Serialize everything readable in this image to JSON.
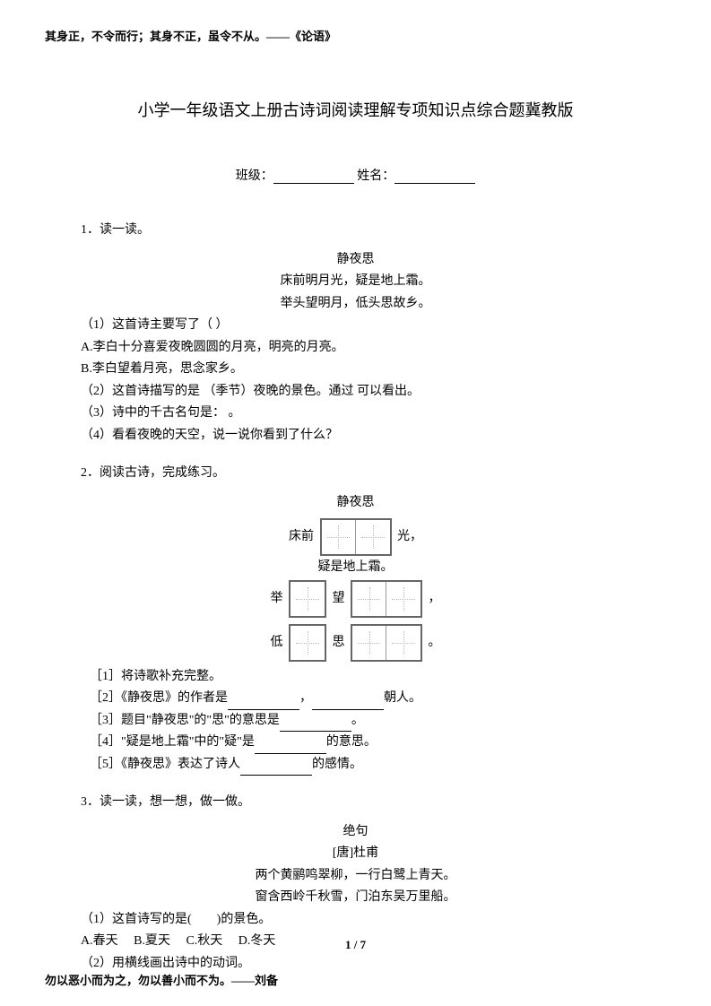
{
  "header_quote": "其身正，不令而行；其身不正，虽令不从。——《论语》",
  "title": "小学一年级语文上册古诗词阅读理解专项知识点综合题冀教版",
  "form": {
    "class_label": "班级：",
    "name_label": "   姓名："
  },
  "q1": {
    "num": "1．读一读。",
    "poem_title": "静夜思",
    "line1": "床前明月光，疑是地上霜。",
    "line2": "举头望明月，低头思故乡。",
    "sub1": "（1）这首诗主要写了（ ）",
    "optA": "A.李白十分喜爱夜晚圆圆的月亮，明亮的月亮。",
    "optB": "B.李白望着月亮，思念家乡。",
    "sub2": "（2）这首诗描写的是   （季节）夜晚的景色。通过   可以看出。",
    "sub3": "（3）诗中的千古名句是：   。",
    "sub4": "（4）看看夜晚的天空，说一说你看到了什么？"
  },
  "q2": {
    "num": "2．阅读古诗，完成练习。",
    "poem_title": "静夜思",
    "row1_pre": "床前",
    "row1_post": "光，",
    "row2": "疑是地上霜。",
    "row3_pre": "举",
    "row3_mid": "望",
    "row3_post": "，",
    "row4_pre": "低",
    "row4_mid": "思",
    "row4_post": "。",
    "sub1": "［1］将诗歌补充完整。",
    "sub2a": "［2］《静夜思》的作者是",
    "sub2b": "，",
    "sub2c": "朝人。",
    "sub3a": "［3］题目\"静夜思\"的\"思\"的意思是",
    "sub3b": "。",
    "sub4a": "［4］\"疑是地上霜\"中的\"疑\"是",
    "sub4b": "的意思。",
    "sub5a": "［5］《静夜思》表达了诗人",
    "sub5b": "的感情。"
  },
  "q3": {
    "num": "3．读一读，想一想，做一做。",
    "poem_title": "绝句",
    "author": "[唐]杜甫",
    "line1": "两个黄鹂鸣翠柳，一行白鹭上青天。",
    "line2": "窗含西岭千秋雪，门泊东吴万里船。",
    "sub1": "（1）这首诗写的是(　　)的景色。",
    "opts": "A.春天　 B.夏天　 C.秋天 　D.冬天",
    "sub2": "（2）用横线画出诗中的动词。"
  },
  "page": {
    "current": "1",
    "sep": " / ",
    "total": "7"
  },
  "footer_quote": "勿以恶小而为之，勿以善小而不为。——刘备"
}
